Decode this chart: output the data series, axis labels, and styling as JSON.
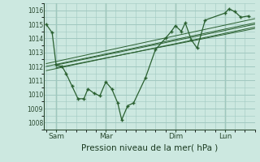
{
  "bg_color": "#cce8e0",
  "grid_color": "#a0c8c0",
  "line_color": "#2a6030",
  "vline_color": "#6a9a80",
  "xlabel": "Pression niveau de la mer( hPa )",
  "ylim": [
    1007.5,
    1016.5
  ],
  "yticks": [
    1008,
    1009,
    1010,
    1011,
    1012,
    1013,
    1014,
    1015,
    1016
  ],
  "xtick_labels": [
    "Sam",
    "Mar",
    "Dim",
    "Lun"
  ],
  "xtick_positions": [
    0.5,
    3.0,
    6.5,
    9.0
  ],
  "xlim": [
    -0.1,
    10.5
  ],
  "main_x": [
    0.0,
    0.3,
    0.5,
    0.8,
    1.0,
    1.3,
    1.6,
    1.9,
    2.1,
    2.4,
    2.7,
    3.0,
    3.3,
    3.6,
    3.8,
    4.1,
    4.4,
    5.0,
    5.5,
    6.0,
    6.3,
    6.5,
    6.8,
    7.0,
    7.3,
    7.6,
    8.0,
    9.0,
    9.2,
    9.5,
    9.8,
    10.2
  ],
  "main_y": [
    1015.0,
    1014.4,
    1012.1,
    1012.0,
    1011.5,
    1010.6,
    1009.7,
    1009.7,
    1010.4,
    1010.1,
    1009.9,
    1010.9,
    1010.4,
    1009.4,
    1008.2,
    1009.2,
    1009.4,
    1011.2,
    1013.2,
    1014.0,
    1014.5,
    1014.9,
    1014.5,
    1015.1,
    1013.9,
    1013.3,
    1015.3,
    1015.8,
    1016.1,
    1015.9,
    1015.5,
    1015.6
  ],
  "trend_lines": [
    {
      "x": [
        0.0,
        10.5
      ],
      "y": [
        1012.2,
        1015.4
      ]
    },
    {
      "x": [
        0.0,
        10.5
      ],
      "y": [
        1012.0,
        1015.1
      ]
    },
    {
      "x": [
        0.0,
        10.5
      ],
      "y": [
        1011.7,
        1014.8
      ]
    },
    {
      "x": [
        0.5,
        10.5
      ],
      "y": [
        1012.1,
        1015.0
      ]
    },
    {
      "x": [
        0.5,
        10.5
      ],
      "y": [
        1011.9,
        1014.7
      ]
    }
  ],
  "vline_positions": [
    0.5,
    3.0,
    6.5,
    9.0
  ]
}
